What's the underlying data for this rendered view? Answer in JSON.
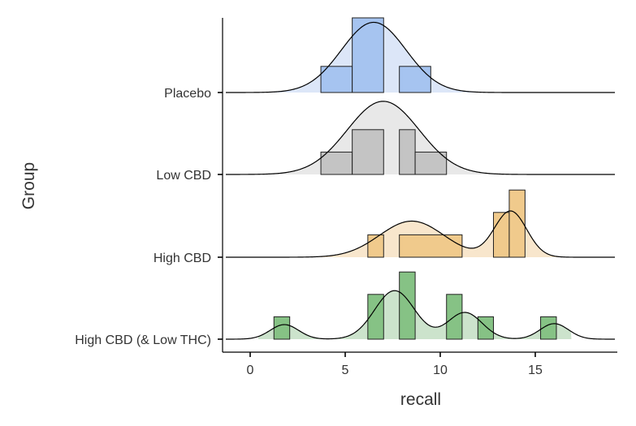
{
  "chart_data": {
    "type": "ridgeline",
    "title": "",
    "xlabel": "recall",
    "ylabel": "Group",
    "xlim": [
      -1.5,
      19.3
    ],
    "xticks": [
      0,
      5,
      10,
      15
    ],
    "bin_width": 1.65,
    "density_range": [
      0.4,
      16.9
    ],
    "groups": [
      {
        "name": "Placebo",
        "fill_color": "#a6c4f0",
        "density_color": "#dce6f8",
        "histogram": [
          {
            "x0": 3.72,
            "x1": 5.37,
            "height": 0.35
          },
          {
            "x0": 5.37,
            "x1": 7.02,
            "height": 1.0
          },
          {
            "x0": 7.02,
            "x1": 7.85,
            "height": 0.0
          },
          {
            "x0": 7.85,
            "x1": 9.5,
            "height": 0.35
          }
        ],
        "density": {
          "mu": [
            6.5
          ],
          "sigma": [
            1.7
          ],
          "weights": [
            1.0
          ],
          "peak_height": 0.94
        }
      },
      {
        "name": "Low CBD",
        "fill_color": "#c4c4c4",
        "density_color": "#e8e8e8",
        "histogram": [
          {
            "x0": 3.72,
            "x1": 5.37,
            "height": 0.3
          },
          {
            "x0": 5.37,
            "x1": 7.02,
            "height": 0.6
          },
          {
            "x0": 7.85,
            "x1": 8.68,
            "height": 0.6
          },
          {
            "x0": 8.68,
            "x1": 10.33,
            "height": 0.3
          }
        ],
        "density": {
          "mu": [
            7.0
          ],
          "sigma": [
            1.9
          ],
          "weights": [
            1.0
          ],
          "peak_height": 0.98
        }
      },
      {
        "name": "High CBD",
        "fill_color": "#f0ca8c",
        "density_color": "#f8e6cc",
        "histogram": [
          {
            "x0": 6.19,
            "x1": 7.02,
            "height": 0.3
          },
          {
            "x0": 7.85,
            "x1": 11.15,
            "height": 0.3
          },
          {
            "x0": 12.8,
            "x1": 13.63,
            "height": 0.6
          },
          {
            "x0": 13.63,
            "x1": 14.46,
            "height": 0.9
          }
        ],
        "density": {
          "mu": [
            8.5,
            13.7
          ],
          "sigma": [
            1.7,
            0.85
          ],
          "weights": [
            0.55,
            0.7
          ],
          "peak_height": 0.62
        }
      },
      {
        "name": "High CBD (& Low THC)",
        "fill_color": "#86c285",
        "density_color": "#cce3cc",
        "histogram": [
          {
            "x0": 1.25,
            "x1": 2.08,
            "height": 0.3
          },
          {
            "x0": 6.19,
            "x1": 7.02,
            "height": 0.6
          },
          {
            "x0": 7.02,
            "x1": 7.85,
            "height": 0.0
          },
          {
            "x0": 7.85,
            "x1": 8.68,
            "height": 0.9
          },
          {
            "x0": 10.33,
            "x1": 11.15,
            "height": 0.6
          },
          {
            "x0": 11.98,
            "x1": 12.8,
            "height": 0.3
          },
          {
            "x0": 15.28,
            "x1": 16.11,
            "height": 0.3
          }
        ],
        "density": {
          "mu": [
            1.8,
            7.6,
            11.3,
            16.0
          ],
          "sigma": [
            0.75,
            1.05,
            0.9,
            0.75
          ],
          "weights": [
            0.3,
            1.0,
            0.55,
            0.32
          ],
          "peak_height": 0.65
        }
      }
    ]
  }
}
